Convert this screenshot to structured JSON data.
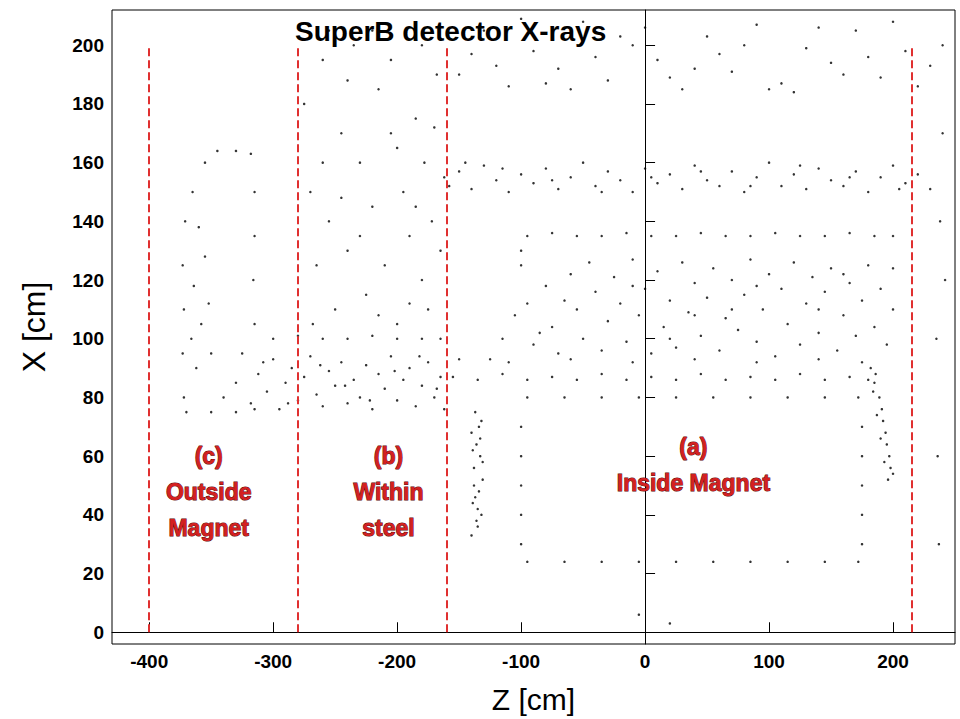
{
  "chart_data": {
    "type": "scatter",
    "title": "SuperB detector X-rays",
    "x_label": "Z [cm]",
    "y_label": "X [cm]",
    "color": "#000000",
    "marker": "circle",
    "grid": false,
    "xlim": [
      -430,
      250
    ],
    "xticks": [
      -400,
      -300,
      -200,
      -100,
      0,
      100,
      200
    ],
    "ylim": [
      -4,
      212
    ],
    "yticks": [
      0,
      20,
      40,
      60,
      80,
      100,
      120,
      140,
      160,
      180,
      200
    ],
    "dividers": {
      "z": [
        -400,
        -280,
        -160,
        215
      ],
      "from": 0,
      "to": 200,
      "color": "#e03030"
    },
    "annotations": [
      {
        "lines": [
          "(c)",
          "Outside",
          "Magnet"
        ],
        "z": -352,
        "x": 60,
        "color": "#d42020"
      },
      {
        "lines": [
          "(b)",
          "Within",
          "steel"
        ],
        "z": -207,
        "x": 60,
        "color": "#d42020"
      },
      {
        "lines": [
          "(a)",
          "Inside Magnet"
        ],
        "z": 39,
        "x": 63,
        "color": "#d42020"
      }
    ],
    "points": [
      [
        -150,
        190
      ],
      [
        -130,
        205
      ],
      [
        -110,
        186
      ],
      [
        -90,
        198
      ],
      [
        -70,
        192
      ],
      [
        -50,
        208
      ],
      [
        -30,
        188
      ],
      [
        -10,
        200
      ],
      [
        10,
        195
      ],
      [
        30,
        185
      ],
      [
        50,
        203
      ],
      [
        70,
        191
      ],
      [
        90,
        207
      ],
      [
        110,
        187
      ],
      [
        130,
        199
      ],
      [
        150,
        194
      ],
      [
        170,
        205
      ],
      [
        190,
        189
      ],
      [
        210,
        198
      ],
      [
        230,
        193
      ],
      [
        -140,
        197
      ],
      [
        -100,
        209
      ],
      [
        -60,
        185
      ],
      [
        -20,
        203
      ],
      [
        20,
        189
      ],
      [
        60,
        197
      ],
      [
        100,
        185
      ],
      [
        140,
        206
      ],
      [
        180,
        196
      ],
      [
        220,
        186
      ],
      [
        -120,
        193
      ],
      [
        -80,
        187
      ],
      [
        -40,
        196
      ],
      [
        0,
        206
      ],
      [
        40,
        192
      ],
      [
        80,
        200
      ],
      [
        120,
        184
      ],
      [
        160,
        190
      ],
      [
        200,
        208
      ],
      [
        240,
        200
      ],
      [
        -275,
        180
      ],
      [
        -270,
        150
      ],
      [
        -265,
        125
      ],
      [
        -260,
        195
      ],
      [
        -255,
        140
      ],
      [
        -250,
        110
      ],
      [
        -245,
        170
      ],
      [
        -240,
        130
      ],
      [
        -235,
        200
      ],
      [
        -230,
        160
      ],
      [
        -225,
        115
      ],
      [
        -220,
        145
      ],
      [
        -215,
        185
      ],
      [
        -210,
        125
      ],
      [
        -205,
        170
      ],
      [
        -200,
        105
      ],
      [
        -195,
        150
      ],
      [
        -190,
        135
      ],
      [
        -185,
        175
      ],
      [
        -180,
        120
      ],
      [
        -178,
        160
      ],
      [
        -175,
        110
      ],
      [
        -172,
        140
      ],
      [
        -168,
        190
      ],
      [
        -165,
        130
      ],
      [
        -162,
        155
      ],
      [
        -185,
        145
      ],
      [
        -200,
        165
      ],
      [
        -190,
        112
      ],
      [
        -170,
        172
      ],
      [
        -255,
        205
      ],
      [
        -240,
        188
      ],
      [
        -220,
        205
      ],
      [
        -205,
        195
      ],
      [
        -180,
        200
      ],
      [
        -260,
        160
      ],
      [
        -230,
        135
      ],
      [
        -215,
        108
      ],
      [
        -245,
        148
      ],
      [
        -268,
        105
      ],
      [
        -158,
        152
      ],
      [
        -150,
        157
      ],
      [
        -140,
        151
      ],
      [
        -130,
        159
      ],
      [
        -120,
        154
      ],
      [
        -110,
        150
      ],
      [
        -100,
        156
      ],
      [
        -90,
        153
      ],
      [
        -80,
        158
      ],
      [
        -70,
        151
      ],
      [
        -60,
        155
      ],
      [
        -50,
        160
      ],
      [
        -40,
        152
      ],
      [
        -30,
        157
      ],
      [
        -20,
        154
      ],
      [
        -10,
        150
      ],
      [
        0,
        158
      ],
      [
        10,
        153
      ],
      [
        20,
        156
      ],
      [
        30,
        151
      ],
      [
        40,
        159
      ],
      [
        50,
        154
      ],
      [
        60,
        152
      ],
      [
        70,
        157
      ],
      [
        80,
        150
      ],
      [
        90,
        155
      ],
      [
        100,
        160
      ],
      [
        110,
        152
      ],
      [
        120,
        156
      ],
      [
        130,
        151
      ],
      [
        140,
        158
      ],
      [
        150,
        154
      ],
      [
        160,
        152
      ],
      [
        170,
        157
      ],
      [
        180,
        150
      ],
      [
        190,
        155
      ],
      [
        200,
        159
      ],
      [
        210,
        153
      ],
      [
        220,
        156
      ],
      [
        230,
        151
      ],
      [
        -145,
        160
      ],
      [
        -115,
        158
      ],
      [
        -75,
        154
      ],
      [
        -35,
        150
      ],
      [
        5,
        155
      ],
      [
        45,
        157
      ],
      [
        85,
        152
      ],
      [
        125,
        159
      ],
      [
        165,
        155
      ],
      [
        205,
        151
      ],
      [
        -95,
        135
      ],
      [
        -75,
        136
      ],
      [
        -55,
        135
      ],
      [
        -35,
        135
      ],
      [
        -15,
        136
      ],
      [
        5,
        135
      ],
      [
        25,
        135
      ],
      [
        45,
        136
      ],
      [
        65,
        135
      ],
      [
        85,
        135
      ],
      [
        105,
        136
      ],
      [
        125,
        135
      ],
      [
        145,
        135
      ],
      [
        165,
        136
      ],
      [
        185,
        135
      ],
      [
        200,
        135
      ],
      [
        -100,
        130
      ],
      [
        -100,
        125
      ],
      [
        -125,
        93
      ],
      [
        -115,
        100
      ],
      [
        -105,
        108
      ],
      [
        -95,
        112
      ],
      [
        -90,
        98
      ],
      [
        -80,
        118
      ],
      [
        -75,
        104
      ],
      [
        -70,
        95
      ],
      [
        -60,
        122
      ],
      [
        -55,
        110
      ],
      [
        -50,
        100
      ],
      [
        -45,
        126
      ],
      [
        -40,
        116
      ],
      [
        -35,
        96
      ],
      [
        -30,
        106
      ],
      [
        -25,
        121
      ],
      [
        -20,
        112
      ],
      [
        -15,
        99
      ],
      [
        -10,
        127
      ],
      [
        -5,
        108
      ],
      [
        0,
        117
      ],
      [
        5,
        95
      ],
      [
        10,
        123
      ],
      [
        15,
        104
      ],
      [
        20,
        113
      ],
      [
        25,
        97
      ],
      [
        30,
        126
      ],
      [
        35,
        109
      ],
      [
        40,
        119
      ],
      [
        45,
        101
      ],
      [
        50,
        114
      ],
      [
        55,
        124
      ],
      [
        60,
        96
      ],
      [
        65,
        107
      ],
      [
        70,
        120
      ],
      [
        75,
        103
      ],
      [
        80,
        115
      ],
      [
        85,
        127
      ],
      [
        90,
        99
      ],
      [
        95,
        110
      ],
      [
        100,
        122
      ],
      [
        105,
        94
      ],
      [
        110,
        117
      ],
      [
        115,
        105
      ],
      [
        120,
        126
      ],
      [
        125,
        98
      ],
      [
        130,
        112
      ],
      [
        135,
        121
      ],
      [
        140,
        102
      ],
      [
        145,
        116
      ],
      [
        150,
        124
      ],
      [
        155,
        96
      ],
      [
        160,
        108
      ],
      [
        165,
        119
      ],
      [
        170,
        101
      ],
      [
        175,
        113
      ],
      [
        180,
        125
      ],
      [
        185,
        104
      ],
      [
        190,
        117
      ],
      [
        195,
        98
      ],
      [
        200,
        110
      ],
      [
        -65,
        113
      ],
      [
        -10,
        118
      ],
      [
        40,
        108
      ],
      [
        90,
        118
      ],
      [
        140,
        110
      ],
      [
        -85,
        102
      ],
      [
        20,
        100
      ],
      [
        70,
        110
      ],
      [
        160,
        122
      ],
      [
        200,
        124
      ],
      [
        -155,
        87
      ],
      [
        -135,
        86
      ],
      [
        -115,
        88
      ],
      [
        -95,
        86
      ],
      [
        -75,
        87
      ],
      [
        -55,
        86
      ],
      [
        -35,
        88
      ],
      [
        -15,
        86
      ],
      [
        5,
        87
      ],
      [
        25,
        86
      ],
      [
        45,
        88
      ],
      [
        65,
        86
      ],
      [
        85,
        87
      ],
      [
        105,
        86
      ],
      [
        125,
        88
      ],
      [
        145,
        86
      ],
      [
        165,
        87
      ],
      [
        180,
        86
      ],
      [
        -150,
        93
      ],
      [
        -110,
        92
      ],
      [
        -60,
        93
      ],
      [
        -10,
        92
      ],
      [
        40,
        93
      ],
      [
        90,
        92
      ],
      [
        140,
        93
      ],
      [
        175,
        92
      ],
      [
        -95,
        80
      ],
      [
        -65,
        80
      ],
      [
        -35,
        80
      ],
      [
        -5,
        80
      ],
      [
        25,
        80
      ],
      [
        55,
        80
      ],
      [
        85,
        80
      ],
      [
        115,
        80
      ],
      [
        145,
        80
      ],
      [
        172,
        80
      ],
      [
        -95,
        24
      ],
      [
        -65,
        24
      ],
      [
        -35,
        24
      ],
      [
        -5,
        24
      ],
      [
        25,
        24
      ],
      [
        55,
        24
      ],
      [
        85,
        24
      ],
      [
        115,
        24
      ],
      [
        145,
        24
      ],
      [
        172,
        24
      ],
      [
        -100,
        30
      ],
      [
        -100,
        40
      ],
      [
        -100,
        50
      ],
      [
        -100,
        60
      ],
      [
        -100,
        70
      ],
      [
        175,
        30
      ],
      [
        175,
        40
      ],
      [
        175,
        50
      ],
      [
        175,
        60
      ],
      [
        175,
        70
      ],
      [
        -140,
        33
      ],
      [
        -135,
        36
      ],
      [
        -132,
        40
      ],
      [
        -139,
        44
      ],
      [
        -134,
        48
      ],
      [
        -131,
        52
      ],
      [
        -138,
        56
      ],
      [
        -133,
        60
      ],
      [
        -136,
        64
      ],
      [
        -140,
        68
      ],
      [
        -132,
        72
      ],
      [
        -137,
        75
      ],
      [
        -135,
        42
      ],
      [
        -138,
        50
      ],
      [
        -133,
        66
      ],
      [
        -136,
        38
      ],
      [
        -131,
        58
      ],
      [
        -139,
        62
      ],
      [
        -134,
        70
      ],
      [
        -137,
        46
      ],
      [
        182,
        90
      ],
      [
        186,
        88
      ],
      [
        184,
        82
      ],
      [
        189,
        80
      ],
      [
        187,
        74
      ],
      [
        192,
        72
      ],
      [
        190,
        66
      ],
      [
        195,
        64
      ],
      [
        193,
        58
      ],
      [
        198,
        56
      ],
      [
        196,
        52
      ],
      [
        200,
        54
      ],
      [
        185,
        85
      ],
      [
        191,
        76
      ],
      [
        194,
        68
      ],
      [
        197,
        60
      ],
      [
        -318,
        78
      ],
      [
        -312,
        88
      ],
      [
        -305,
        82
      ],
      [
        -300,
        93
      ],
      [
        -295,
        76
      ],
      [
        -290,
        85
      ],
      [
        -285,
        90
      ],
      [
        -280,
        79
      ],
      [
        -275,
        87
      ],
      [
        -270,
        94
      ],
      [
        -265,
        81
      ],
      [
        -260,
        77
      ],
      [
        -255,
        89
      ],
      [
        -250,
        84
      ],
      [
        -245,
        92
      ],
      [
        -240,
        78
      ],
      [
        -235,
        86
      ],
      [
        -230,
        80
      ],
      [
        -225,
        91
      ],
      [
        -220,
        76
      ],
      [
        -215,
        88
      ],
      [
        -210,
        83
      ],
      [
        -205,
        94
      ],
      [
        -200,
        79
      ],
      [
        -195,
        86
      ],
      [
        -190,
        90
      ],
      [
        -185,
        77
      ],
      [
        -180,
        84
      ],
      [
        -175,
        92
      ],
      [
        -170,
        80
      ],
      [
        -165,
        87
      ],
      [
        -162,
        76
      ],
      [
        -308,
        92
      ],
      [
        -288,
        78
      ],
      [
        -262,
        91
      ],
      [
        -242,
        84
      ],
      [
        -222,
        79
      ],
      [
        -202,
        89
      ],
      [
        -182,
        94
      ],
      [
        -168,
        83
      ],
      [
        -370,
        75
      ],
      [
        -350,
        75
      ],
      [
        -330,
        75
      ],
      [
        -315,
        76
      ],
      [
        -372,
        80
      ],
      [
        -373,
        95
      ],
      [
        -372,
        110
      ],
      [
        -373,
        125
      ],
      [
        -371,
        140
      ],
      [
        -365,
        150
      ],
      [
        -355,
        160
      ],
      [
        -345,
        164
      ],
      [
        -330,
        164
      ],
      [
        -318,
        163
      ],
      [
        -315,
        150
      ],
      [
        -315,
        135
      ],
      [
        -316,
        120
      ],
      [
        -315,
        105
      ],
      [
        -300,
        100
      ],
      [
        -280,
        101
      ],
      [
        -260,
        100
      ],
      [
        -240,
        100
      ],
      [
        -220,
        101
      ],
      [
        -200,
        100
      ],
      [
        -180,
        100
      ],
      [
        -165,
        100
      ],
      [
        -362,
        90
      ],
      [
        -358,
        105
      ],
      [
        -364,
        118
      ],
      [
        -355,
        128
      ],
      [
        -360,
        138
      ],
      [
        -350,
        95
      ],
      [
        -352,
        112
      ],
      [
        -366,
        100
      ],
      [
        -340,
        80
      ],
      [
        -330,
        85
      ],
      [
        -325,
        95
      ],
      [
        235,
        100
      ],
      [
        238,
        140
      ],
      [
        240,
        170
      ],
      [
        236,
        60
      ],
      [
        242,
        120
      ],
      [
        237,
        30
      ],
      [
        -5,
        6
      ],
      [
        20,
        3
      ]
    ]
  }
}
